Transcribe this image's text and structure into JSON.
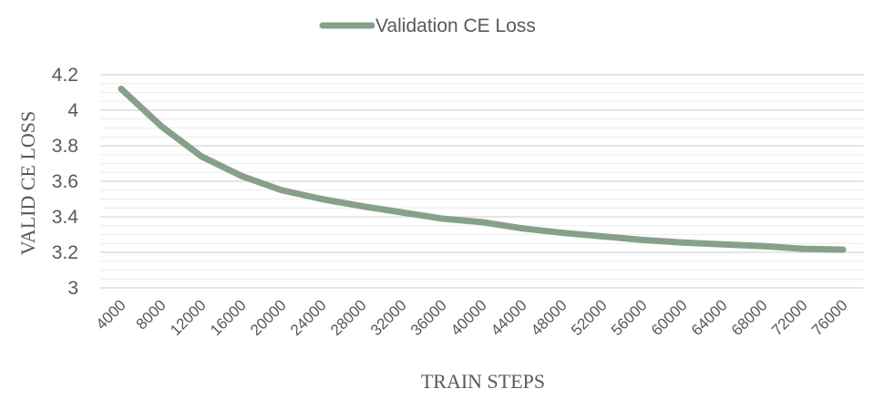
{
  "chart_data": {
    "type": "line",
    "title": "",
    "xlabel": "TRAIN STEPS",
    "ylabel": "VALID CE LOSS",
    "ylim": [
      3,
      4.2
    ],
    "ytick_major": 0.2,
    "ytick_minor": 0.05,
    "legend_position": "top-center",
    "grid": true,
    "x": [
      4000,
      8000,
      12000,
      16000,
      20000,
      24000,
      28000,
      32000,
      36000,
      40000,
      44000,
      48000,
      52000,
      56000,
      60000,
      64000,
      68000,
      72000,
      76000
    ],
    "y_tick_labels": [
      "3",
      "3.2",
      "3.4",
      "3.6",
      "3.8",
      "4",
      "4.2"
    ],
    "series": [
      {
        "name": "Validation CE Loss",
        "color": "#87A08A",
        "values": [
          4.12,
          3.91,
          3.74,
          3.63,
          3.55,
          3.5,
          3.46,
          3.425,
          3.39,
          3.37,
          3.335,
          3.31,
          3.29,
          3.27,
          3.255,
          3.245,
          3.235,
          3.22,
          3.215
        ]
      }
    ]
  }
}
